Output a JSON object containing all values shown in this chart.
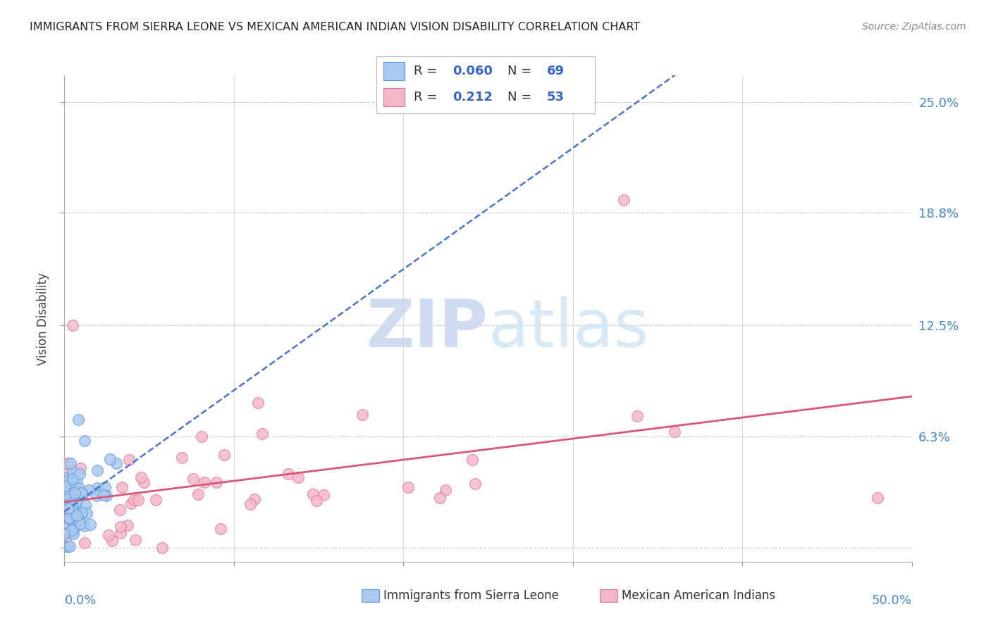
{
  "title": "IMMIGRANTS FROM SIERRA LEONE VS MEXICAN AMERICAN INDIAN VISION DISABILITY CORRELATION CHART",
  "source": "Source: ZipAtlas.com",
  "ylabel": "Vision Disability",
  "y_tick_positions": [
    0.0,
    0.0625,
    0.125,
    0.188,
    0.25
  ],
  "y_tick_labels": [
    "",
    "6.3%",
    "12.5%",
    "18.8%",
    "25.0%"
  ],
  "x_lim": [
    0.0,
    0.5
  ],
  "y_lim": [
    -0.008,
    0.265
  ],
  "series1_label": "Immigrants from Sierra Leone",
  "series1_R": "0.060",
  "series1_N": "69",
  "series1_color": "#aac8f0",
  "series1_edge_color": "#5599dd",
  "series2_label": "Mexican American Indians",
  "series2_R": "0.212",
  "series2_N": "53",
  "series2_color": "#f5b8c8",
  "series2_edge_color": "#e07090",
  "trend1_color": "#4477cc",
  "trend2_color": "#dd5577",
  "background_color": "#ffffff",
  "grid_color": "#cccccc",
  "watermark_zip_color": "#c8d8ee",
  "watermark_atlas_color": "#d8e8f5"
}
